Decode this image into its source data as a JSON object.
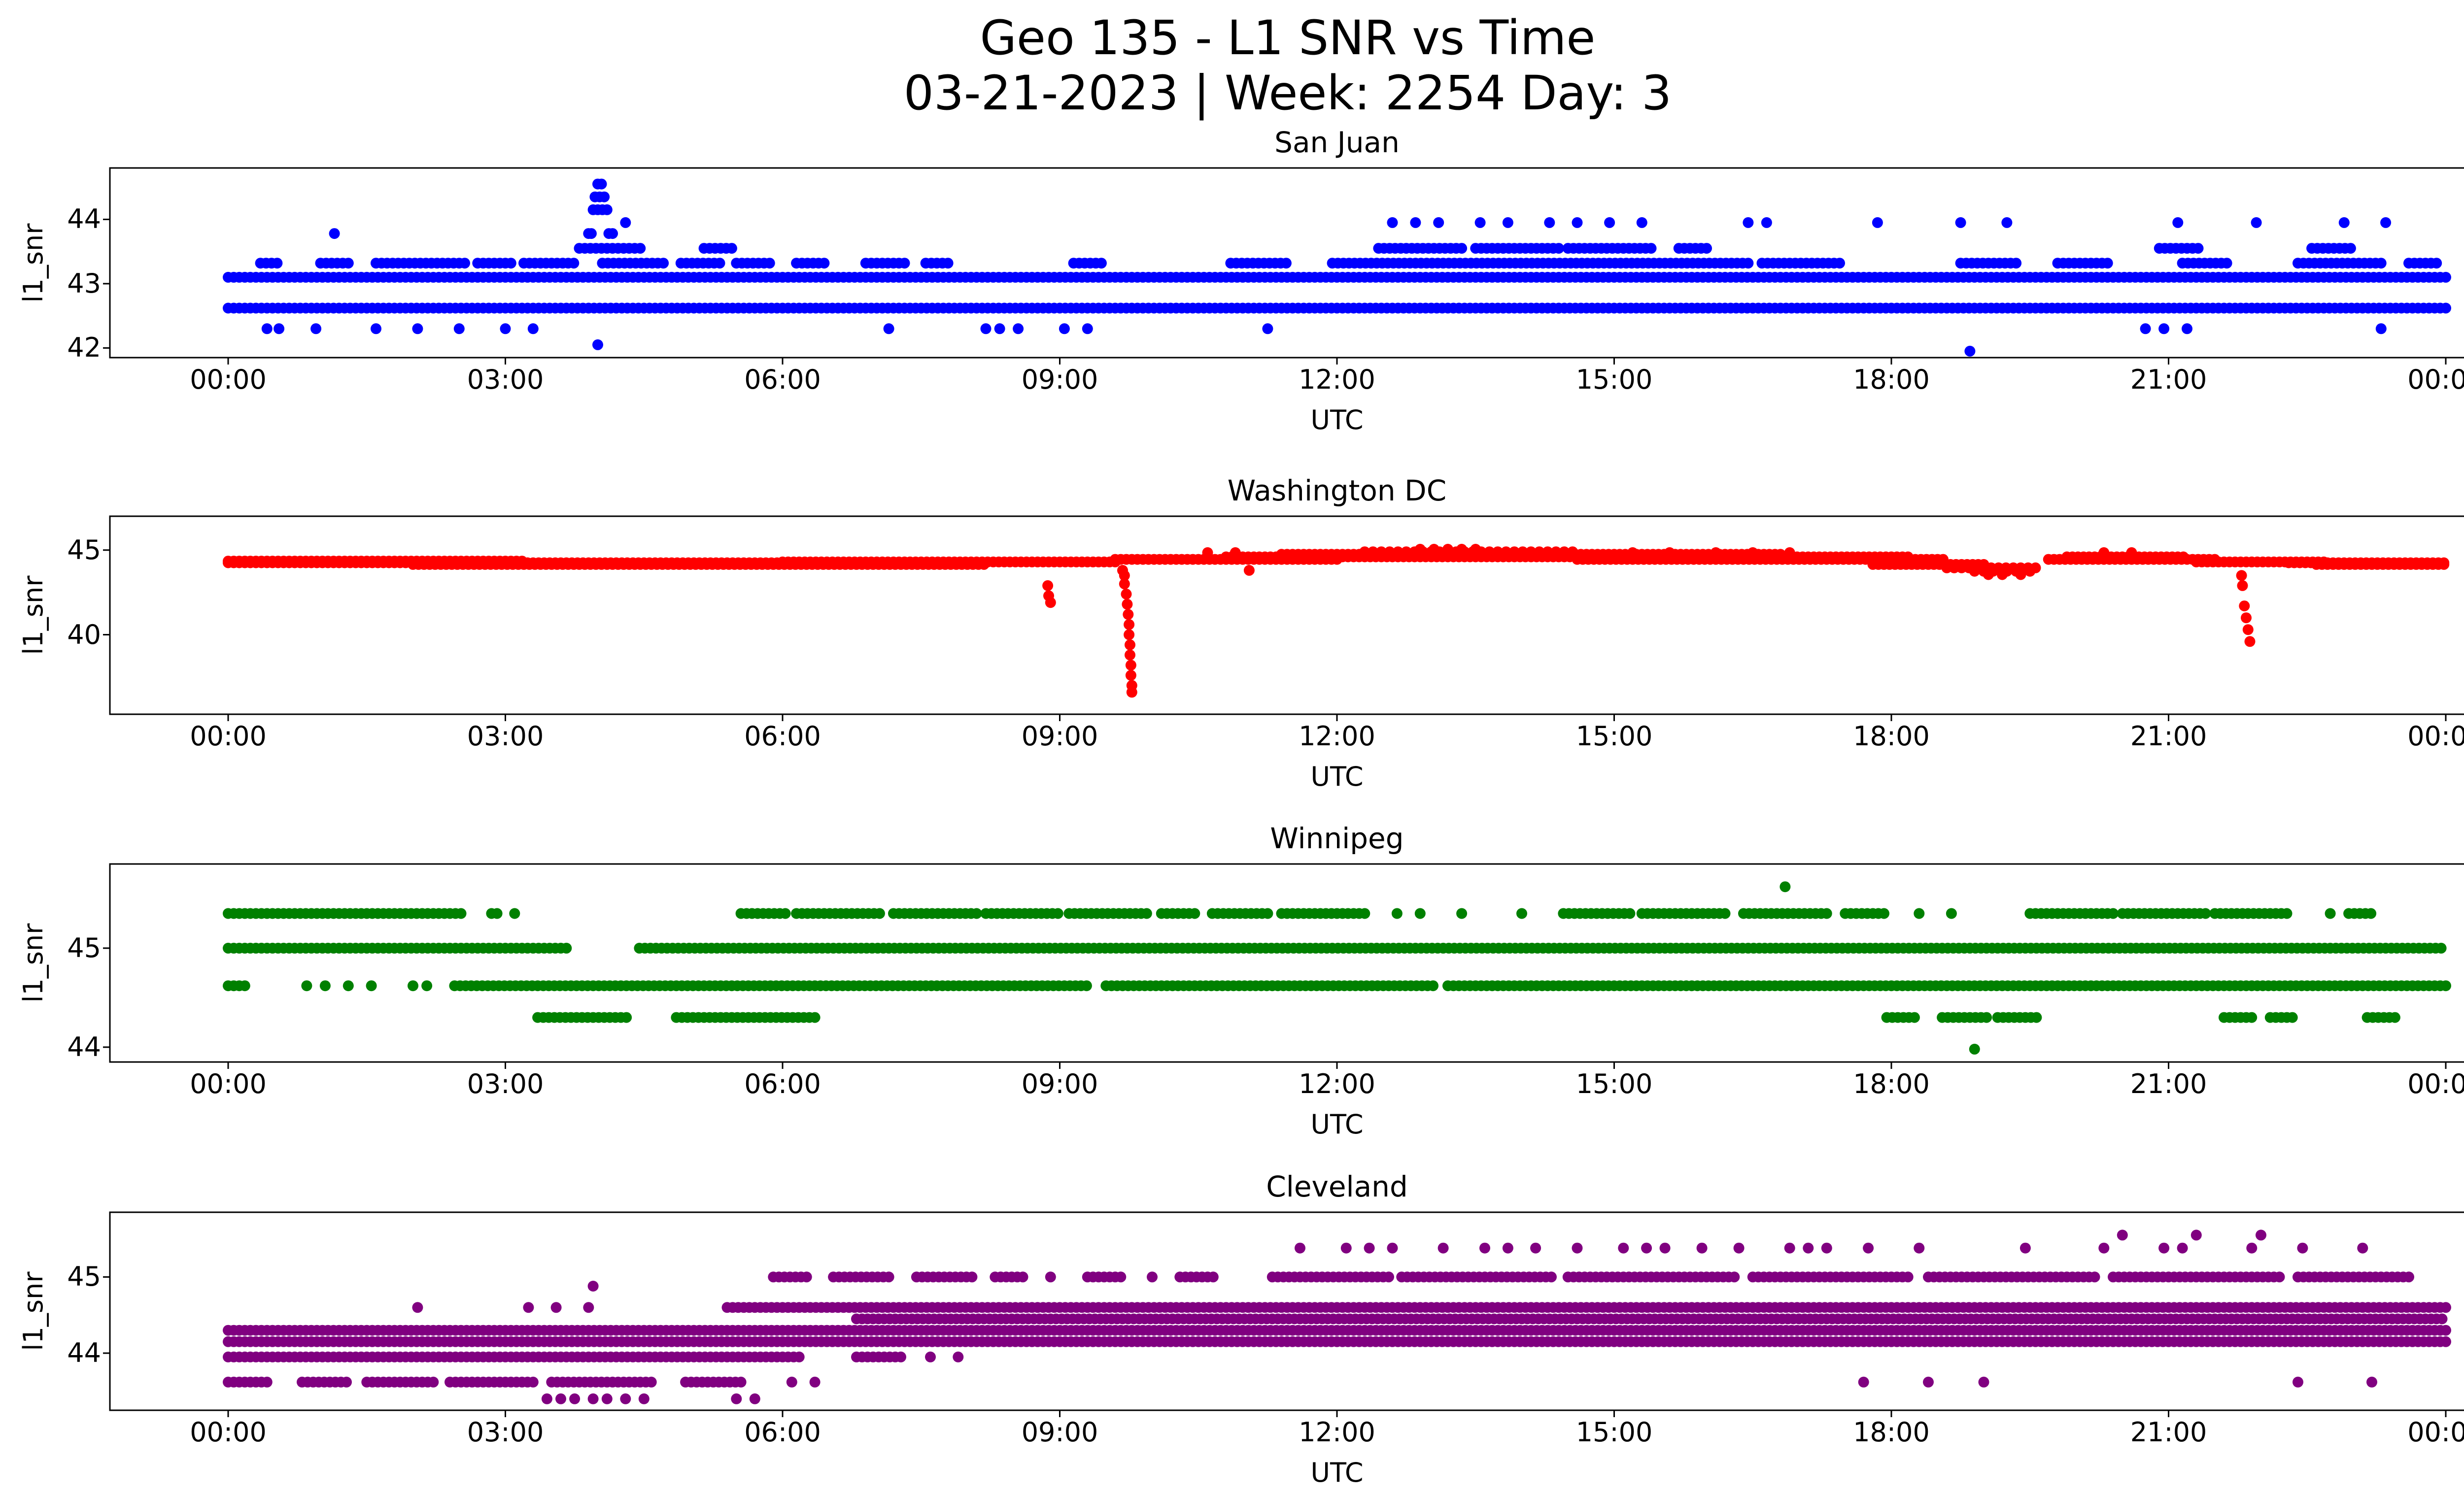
{
  "chart_data": {
    "type": "scatter",
    "title": "Geo 135 - L1 SNR vs Time",
    "subtitle": "03-21-2023 | Week: 2254 Day: 3",
    "xlabel": "UTC",
    "ylabel": "l1_snr",
    "x_range_hours": [
      0,
      24
    ],
    "x_tick_hours": [
      0,
      3,
      6,
      9,
      12,
      15,
      18,
      21,
      24
    ],
    "x_ticks": [
      "00:00",
      "03:00",
      "06:00",
      "09:00",
      "12:00",
      "15:00",
      "18:00",
      "21:00",
      "00:00"
    ],
    "grid": false,
    "legend": "none",
    "subplots": [
      {
        "station": "San Juan",
        "color": "#0000ff",
        "ylim": [
          41.85,
          44.8
        ],
        "yticks": [
          42,
          43,
          44
        ],
        "ytick_labels": [
          "42",
          "43",
          "44"
        ],
        "bands": [
          {
            "y": 43.1,
            "seg": [
              [
                0,
                24
              ]
            ]
          },
          {
            "y": 42.62,
            "seg": [
              [
                0,
                24
              ]
            ]
          },
          {
            "y": 43.32,
            "seg": [
              [
                0.35,
                0.55
              ],
              [
                1.0,
                1.35
              ],
              [
                1.6,
                2.6
              ],
              [
                2.7,
                3.1
              ],
              [
                3.2,
                3.75
              ],
              [
                4.05,
                4.75
              ],
              [
                4.9,
                5.35
              ],
              [
                5.5,
                5.9
              ],
              [
                6.15,
                6.45
              ],
              [
                6.9,
                7.35
              ],
              [
                7.55,
                7.8
              ],
              [
                9.15,
                9.45
              ],
              [
                10.85,
                11.45
              ],
              [
                11.95,
                16.45
              ],
              [
                16.6,
                17.45
              ],
              [
                18.75,
                19.35
              ],
              [
                19.8,
                20.35
              ],
              [
                21.15,
                21.65
              ],
              [
                22.4,
                23.35
              ],
              [
                23.6,
                23.9
              ]
            ]
          },
          {
            "y": 43.55,
            "seg": [
              [
                3.8,
                4.5
              ],
              [
                5.15,
                5.5
              ],
              [
                12.45,
                13.4
              ],
              [
                13.5,
                14.4
              ],
              [
                14.5,
                15.45
              ],
              [
                15.7,
                16.05
              ],
              [
                20.9,
                21.35
              ],
              [
                22.55,
                23.0
              ]
            ]
          },
          {
            "y": 43.95,
            "pts": [
              4.3,
              12.6,
              12.85,
              13.1,
              13.55,
              13.85,
              14.3,
              14.6,
              14.95,
              15.3,
              16.45,
              16.65,
              17.85,
              18.75,
              19.25,
              21.1,
              21.95,
              22.9,
              23.35
            ]
          },
          {
            "y": 44.15,
            "pts": [
              3.95,
              4.0,
              4.05,
              4.1
            ]
          },
          {
            "y": 44.35,
            "pts": [
              3.97,
              4.02,
              4.07
            ]
          },
          {
            "y": 44.55,
            "pts": [
              4.0,
              4.04
            ]
          },
          {
            "y": 43.78,
            "pts": [
              1.15,
              3.9,
              3.93,
              4.12,
              4.16
            ]
          },
          {
            "y": 42.3,
            "pts": [
              0.42,
              0.55,
              0.95,
              1.6,
              2.05,
              2.5,
              3.0,
              3.3,
              7.15,
              8.2,
              8.35,
              8.55,
              9.05,
              9.3,
              11.25,
              20.75,
              20.95,
              21.2,
              23.3
            ]
          },
          {
            "y": 42.05,
            "pts": [
              4.0
            ]
          },
          {
            "y": 41.95,
            "pts": [
              18.85
            ]
          }
        ]
      },
      {
        "station": "Washington DC",
        "color": "#ff0000",
        "ylim": [
          35.3,
          47.0
        ],
        "yticks": [
          40,
          45
        ],
        "ytick_labels": [
          "40",
          "45"
        ],
        "bands": [
          {
            "y": 44.35,
            "seg": [
              [
                0,
                3.2
              ]
            ]
          },
          {
            "y": 44.25,
            "seg": [
              [
                0,
                6.3
              ],
              [
                22.3,
                24
              ]
            ]
          },
          {
            "y": 44.15,
            "seg": [
              [
                2.0,
                8.2
              ],
              [
                17.8,
                19.0
              ],
              [
                22.6,
                24
              ]
            ]
          },
          {
            "y": 44.3,
            "seg": [
              [
                6.0,
                9.6
              ],
              [
                21.3,
                22.7
              ]
            ]
          },
          {
            "y": 44.45,
            "seg": [
              [
                9.6,
                12.0
              ],
              [
                14.6,
                18.6
              ],
              [
                19.7,
                21.5
              ]
            ]
          },
          {
            "y": 44.6,
            "seg": [
              [
                10.8,
                18.2
              ],
              [
                19.9,
                21.2
              ]
            ]
          },
          {
            "y": 44.75,
            "seg": [
              [
                11.4,
                16.8
              ]
            ]
          },
          {
            "y": 44.9,
            "seg": [
              [
                12.3,
                14.6
              ]
            ],
            "sp": 0.09
          },
          {
            "y": 45.05,
            "pts": [
              12.9,
              13.05,
              13.2,
              13.35,
              13.5
            ]
          },
          {
            "y": 44.85,
            "pts": [
              10.6,
              10.9,
              15.2,
              15.6,
              16.1,
              16.5,
              16.9,
              20.3,
              20.6
            ]
          },
          {
            "y": 43.95,
            "seg": [
              [
                18.6,
                19.6
              ]
            ],
            "sp": 0.08
          },
          {
            "y": 43.75,
            "pts": [
              18.9,
              19.0,
              19.1,
              19.25,
              19.35,
              19.5
            ]
          },
          {
            "y": 43.55,
            "pts": [
              19.05,
              19.2,
              19.4
            ]
          },
          {
            "xy": [
              [
                9.68,
                43.8
              ],
              [
                9.7,
                43.5
              ],
              [
                9.7,
                43.0
              ],
              [
                9.72,
                42.4
              ],
              [
                9.73,
                41.8
              ],
              [
                9.74,
                41.2
              ],
              [
                9.75,
                40.6
              ],
              [
                9.75,
                40.0
              ],
              [
                9.76,
                39.4
              ],
              [
                9.76,
                38.8
              ],
              [
                9.77,
                38.2
              ],
              [
                9.77,
                37.6
              ],
              [
                9.78,
                37.0
              ],
              [
                9.78,
                36.6
              ],
              [
                8.87,
                42.9
              ],
              [
                8.88,
                42.3
              ],
              [
                8.9,
                41.9
              ],
              [
                11.05,
                43.8
              ]
            ]
          },
          {
            "xy": [
              [
                21.79,
                43.5
              ],
              [
                21.8,
                42.9
              ],
              [
                21.82,
                41.7
              ],
              [
                21.84,
                41.0
              ],
              [
                21.86,
                40.3
              ],
              [
                21.88,
                39.6
              ]
            ]
          }
        ]
      },
      {
        "station": "Winnipeg",
        "color": "#008000",
        "ylim": [
          43.85,
          45.85
        ],
        "yticks": [
          44,
          45
        ],
        "ytick_labels": [
          "44",
          "45"
        ],
        "bands": [
          {
            "y": 45.35,
            "seg": [
              [
                0,
                2.55
              ],
              [
                2.85,
                2.95
              ],
              [
                5.55,
                6.05
              ],
              [
                6.15,
                7.1
              ],
              [
                7.2,
                8.1
              ],
              [
                8.2,
                9.0
              ],
              [
                9.1,
                9.95
              ],
              [
                10.1,
                10.5
              ],
              [
                10.65,
                11.3
              ],
              [
                11.4,
                12.3
              ],
              [
                14.45,
                15.2
              ],
              [
                15.3,
                16.2
              ],
              [
                16.4,
                17.3
              ],
              [
                17.5,
                17.95
              ],
              [
                19.5,
                20.4
              ],
              [
                20.5,
                21.4
              ],
              [
                21.5,
                22.3
              ],
              [
                22.95,
                23.2
              ]
            ],
            "pts": [
              3.1,
              12.65,
              12.9,
              13.35,
              14.0,
              18.3,
              18.65,
              22.75
            ]
          },
          {
            "y": 45.0,
            "seg": [
              [
                0,
                3.7
              ],
              [
                4.45,
                24
              ]
            ]
          },
          {
            "y": 44.62,
            "seg": [
              [
                0,
                0.18
              ],
              [
                2.45,
                9.3
              ],
              [
                9.5,
                13.05
              ],
              [
                13.2,
                24
              ]
            ],
            "pts": [
              0.85,
              1.05,
              1.3,
              1.55,
              2.0,
              2.15
            ]
          },
          {
            "y": 44.3,
            "seg": [
              [
                3.35,
                4.35
              ],
              [
                4.85,
                6.35
              ],
              [
                17.95,
                18.25
              ],
              [
                18.55,
                19.05
              ],
              [
                19.15,
                19.6
              ],
              [
                21.6,
                21.9
              ],
              [
                22.1,
                22.35
              ],
              [
                23.15,
                23.45
              ]
            ]
          },
          {
            "y": 45.62,
            "pts": [
              16.85
            ]
          },
          {
            "y": 43.98,
            "pts": [
              18.9
            ]
          }
        ]
      },
      {
        "station": "Cleveland",
        "color": "#800080",
        "ylim": [
          43.25,
          45.85
        ],
        "yticks": [
          44,
          45
        ],
        "ytick_labels": [
          "44",
          "45"
        ],
        "bands": [
          {
            "y": 44.3,
            "seg": [
              [
                0,
                24
              ]
            ]
          },
          {
            "y": 44.15,
            "seg": [
              [
                0,
                24
              ]
            ]
          },
          {
            "y": 43.95,
            "seg": [
              [
                0,
                6.2
              ],
              [
                6.8,
                7.3
              ]
            ],
            "pts": [
              7.6,
              7.9
            ]
          },
          {
            "y": 43.62,
            "seg": [
              [
                0,
                0.45
              ],
              [
                0.8,
                1.3
              ],
              [
                1.5,
                2.25
              ],
              [
                2.4,
                3.3
              ],
              [
                3.5,
                4.6
              ],
              [
                4.95,
                5.6
              ]
            ],
            "pts": [
              6.1,
              6.35,
              17.7,
              18.4,
              19.0,
              22.4,
              23.2
            ]
          },
          {
            "y": 43.4,
            "pts": [
              3.45,
              3.6,
              3.75,
              3.95,
              4.1,
              4.3,
              4.5,
              5.5,
              5.7
            ]
          },
          {
            "y": 44.6,
            "seg": [
              [
                5.4,
                24
              ]
            ],
            "pts": [
              2.05,
              3.25,
              3.55,
              3.9
            ]
          },
          {
            "y": 44.45,
            "seg": [
              [
                6.8,
                24
              ]
            ]
          },
          {
            "y": 44.88,
            "pts": [
              3.95
            ]
          },
          {
            "y": 45.0,
            "seg": [
              [
                5.9,
                6.3
              ],
              [
                6.55,
                7.2
              ],
              [
                7.45,
                8.05
              ],
              [
                8.3,
                8.65
              ],
              [
                9.3,
                9.7
              ],
              [
                10.3,
                10.7
              ],
              [
                11.3,
                12.6
              ],
              [
                12.7,
                14.35
              ],
              [
                14.5,
                16.3
              ],
              [
                16.5,
                18.2
              ],
              [
                18.4,
                20.2
              ],
              [
                20.4,
                22.2
              ],
              [
                22.4,
                23.65
              ]
            ],
            "pts": [
              8.9,
              10.0
            ]
          },
          {
            "y": 45.38,
            "pts": [
              11.6,
              12.1,
              12.35,
              12.6,
              13.15,
              13.6,
              13.85,
              14.15,
              14.6,
              15.1,
              15.35,
              15.55,
              15.95,
              16.35,
              16.9,
              17.1,
              17.3,
              17.75,
              18.3,
              19.45,
              20.3,
              20.95,
              21.15,
              21.9,
              22.45,
              23.1
            ]
          },
          {
            "y": 45.55,
            "pts": [
              20.5,
              21.3,
              22.0
            ]
          }
        ]
      }
    ]
  }
}
